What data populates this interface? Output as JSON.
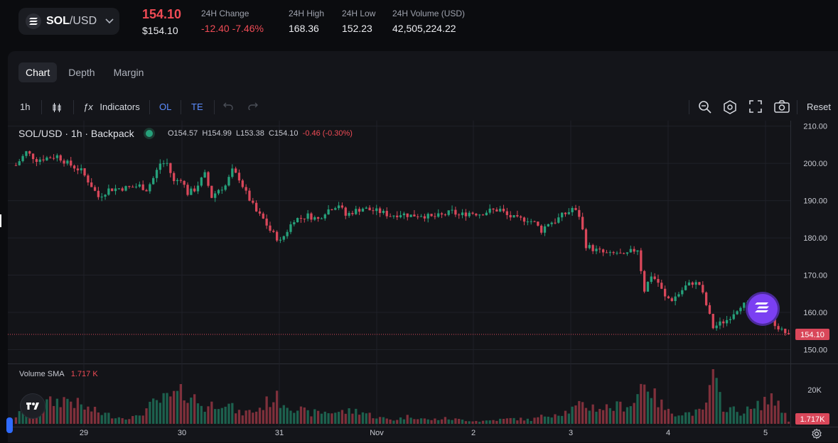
{
  "header": {
    "pair_base": "SOL",
    "pair_quote": "/USD",
    "last_price": "154.10",
    "last_price_usd": "$154.10",
    "change_label": "24H Change",
    "change_value": "-12.40 -7.46%",
    "high_label": "24H High",
    "high_value": "168.36",
    "low_label": "24H Low",
    "low_value": "152.23",
    "volume_label": "24H Volume (USD)",
    "volume_value": "42,505,224.22"
  },
  "tabs": [
    "Chart",
    "Depth",
    "Margin"
  ],
  "toolbar": {
    "interval": "1h",
    "indicators": "Indicators",
    "ol": "OL",
    "te": "TE",
    "reset": "Reset"
  },
  "legend": {
    "title": "SOL/USD · 1h · Backpack",
    "o": "O154.57",
    "h": "H154.99",
    "l": "L153.38",
    "c": "C154.10",
    "chg": "-0.46 (-0.30%)"
  },
  "volume": {
    "label": "Volume SMA",
    "value": "1.717 K",
    "axis_label": "20K",
    "last_tag": "1.717K"
  },
  "chart_data": {
    "type": "candlestick",
    "title": "SOL/USD · 1h · Backpack",
    "y_ticks": [
      "210.00",
      "200.00",
      "190.00",
      "180.00",
      "170.00",
      "160.00",
      "150.00"
    ],
    "y_range": [
      148,
      210.5
    ],
    "x_ticks": [
      "29",
      "30",
      "31",
      "Nov",
      "2",
      "3",
      "4",
      "5"
    ],
    "last_price_tag": "154.10",
    "close_path": [
      [
        0,
        199.5
      ],
      [
        3,
        203
      ],
      [
        6,
        201
      ],
      [
        9,
        201.5
      ],
      [
        12,
        202
      ],
      [
        15,
        200
      ],
      [
        19,
        198
      ],
      [
        22,
        194
      ],
      [
        24,
        191
      ],
      [
        27,
        193
      ],
      [
        30,
        193.3
      ],
      [
        33,
        193.5
      ],
      [
        36,
        194
      ],
      [
        38,
        193
      ],
      [
        40,
        196
      ],
      [
        42,
        200
      ],
      [
        44,
        200
      ],
      [
        46,
        195
      ],
      [
        48,
        196
      ],
      [
        50,
        192
      ],
      [
        52,
        193
      ],
      [
        55,
        197
      ],
      [
        57,
        191
      ],
      [
        59,
        193
      ],
      [
        61,
        194
      ],
      [
        63,
        198
      ],
      [
        65,
        196
      ],
      [
        67,
        192
      ],
      [
        70,
        187
      ],
      [
        72,
        185
      ],
      [
        74,
        182
      ],
      [
        77,
        179
      ],
      [
        79,
        182
      ],
      [
        81,
        185
      ],
      [
        83,
        185.3
      ],
      [
        85,
        186
      ],
      [
        88,
        185
      ],
      [
        90,
        187
      ],
      [
        92,
        188.2
      ],
      [
        94,
        189
      ],
      [
        96,
        186
      ],
      [
        98,
        187
      ],
      [
        101,
        188
      ],
      [
        103,
        187.5
      ],
      [
        106,
        187
      ],
      [
        109,
        186
      ],
      [
        112,
        186.5
      ],
      [
        115,
        186
      ],
      [
        118,
        186.2
      ],
      [
        121,
        185.5
      ],
      [
        124,
        186
      ],
      [
        127,
        187
      ],
      [
        129,
        186
      ],
      [
        132,
        186.8
      ],
      [
        135,
        186.5
      ],
      [
        138,
        187.3
      ],
      [
        141,
        187.6
      ],
      [
        143,
        186
      ],
      [
        146,
        185
      ],
      [
        149,
        185
      ],
      [
        151,
        184
      ],
      [
        153,
        182
      ],
      [
        155,
        184
      ],
      [
        157,
        184.5
      ],
      [
        159,
        186
      ],
      [
        161,
        187
      ],
      [
        162,
        188
      ],
      [
        164,
        186
      ],
      [
        166,
        178
      ],
      [
        168,
        177
      ],
      [
        171,
        176
      ],
      [
        173,
        175.5
      ],
      [
        175,
        176
      ],
      [
        177,
        175
      ],
      [
        179,
        176.3
      ],
      [
        181,
        177
      ],
      [
        183,
        166
      ],
      [
        185,
        170
      ],
      [
        187,
        168
      ],
      [
        189,
        164
      ],
      [
        191,
        163.5
      ],
      [
        193,
        165
      ],
      [
        195,
        167
      ],
      [
        197,
        168
      ],
      [
        199,
        167.5
      ],
      [
        201,
        162
      ],
      [
        203,
        156
      ],
      [
        205,
        157
      ],
      [
        207,
        158
      ],
      [
        209,
        160
      ],
      [
        211,
        162
      ],
      [
        213,
        162
      ],
      [
        215,
        163
      ],
      [
        217,
        164
      ],
      [
        219,
        160
      ],
      [
        221,
        157
      ],
      [
        223,
        155
      ],
      [
        225,
        154.1
      ]
    ],
    "volume_envelope_k": [
      [
        0,
        6
      ],
      [
        5,
        14
      ],
      [
        10,
        16
      ],
      [
        15,
        19
      ],
      [
        20,
        12
      ],
      [
        25,
        8
      ],
      [
        30,
        5
      ],
      [
        35,
        5
      ],
      [
        40,
        15
      ],
      [
        45,
        20
      ],
      [
        50,
        24
      ],
      [
        55,
        12
      ],
      [
        60,
        18
      ],
      [
        65,
        8
      ],
      [
        70,
        10
      ],
      [
        75,
        20
      ],
      [
        80,
        14
      ],
      [
        85,
        8
      ],
      [
        90,
        9
      ],
      [
        95,
        9
      ],
      [
        100,
        10
      ],
      [
        105,
        5
      ],
      [
        110,
        3
      ],
      [
        115,
        6
      ],
      [
        120,
        3
      ],
      [
        125,
        4
      ],
      [
        130,
        3
      ],
      [
        135,
        2
      ],
      [
        140,
        3
      ],
      [
        145,
        4
      ],
      [
        150,
        3
      ],
      [
        155,
        7
      ],
      [
        160,
        9
      ],
      [
        165,
        14
      ],
      [
        170,
        12
      ],
      [
        175,
        13
      ],
      [
        180,
        16
      ],
      [
        183,
        36
      ],
      [
        186,
        20
      ],
      [
        190,
        9
      ],
      [
        195,
        8
      ],
      [
        200,
        9
      ],
      [
        203,
        33
      ],
      [
        206,
        14
      ],
      [
        210,
        9
      ],
      [
        215,
        11
      ],
      [
        218,
        18
      ],
      [
        222,
        17
      ],
      [
        225,
        1.7
      ]
    ],
    "colors": {
      "up": "#26a17b",
      "down": "#d9475a",
      "bg": "#131418",
      "grid": "#1f2128"
    }
  }
}
